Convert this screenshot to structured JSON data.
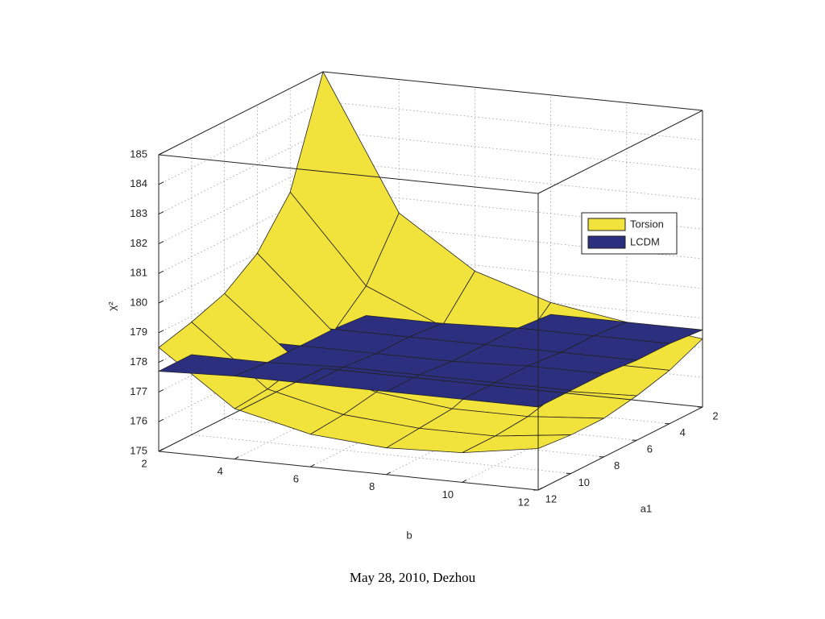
{
  "chart_data": {
    "type": "surface",
    "xlabel": "b",
    "ylabel": "a1",
    "zlabel": "χ²",
    "x": [
      2,
      4,
      6,
      8,
      10,
      12
    ],
    "y": [
      2,
      4,
      6,
      8,
      10,
      12
    ],
    "xlim": [
      2,
      12
    ],
    "ylim": [
      2,
      12
    ],
    "zlim": [
      175,
      185
    ],
    "xticks": [
      2,
      4,
      6,
      8,
      10,
      12
    ],
    "yticks": [
      2,
      4,
      6,
      8,
      10,
      12
    ],
    "zticks": [
      175,
      176,
      177,
      178,
      179,
      180,
      181,
      182,
      183,
      184,
      185
    ],
    "grid": true,
    "legend": "upper right",
    "series": [
      {
        "name": "Torsion",
        "color": "#f2e23c",
        "values": [
          [
            185,
            180.5,
            178.8,
            178.0,
            177.6,
            177.3
          ],
          [
            181.5,
            178.6,
            177.5,
            177.0,
            176.8,
            176.8
          ],
          [
            180.0,
            177.6,
            176.8,
            176.5,
            176.4,
            176.5
          ],
          [
            179.2,
            177.1,
            176.4,
            176.1,
            176.1,
            176.3
          ],
          [
            178.8,
            176.8,
            176.2,
            176.0,
            176.0,
            176.3
          ],
          [
            178.5,
            176.7,
            176.1,
            175.9,
            176.0,
            176.4
          ]
        ]
      },
      {
        "name": "LCDM",
        "color": "#2b2f7e",
        "values": [
          [
            177.6,
            177.6,
            177.6,
            177.6,
            177.6,
            177.6
          ],
          [
            177.6,
            177.6,
            177.6,
            177.7,
            177.7,
            177.7
          ],
          [
            177.7,
            177.7,
            177.7,
            177.7,
            177.7,
            177.7
          ],
          [
            177.7,
            177.7,
            177.7,
            177.7,
            177.8,
            177.8
          ],
          [
            177.7,
            177.7,
            177.8,
            177.8,
            177.8,
            177.8
          ],
          [
            177.7,
            177.8,
            177.8,
            177.8,
            177.8,
            177.8
          ]
        ]
      }
    ]
  },
  "footer": "May 28, 2010, Dezhou"
}
